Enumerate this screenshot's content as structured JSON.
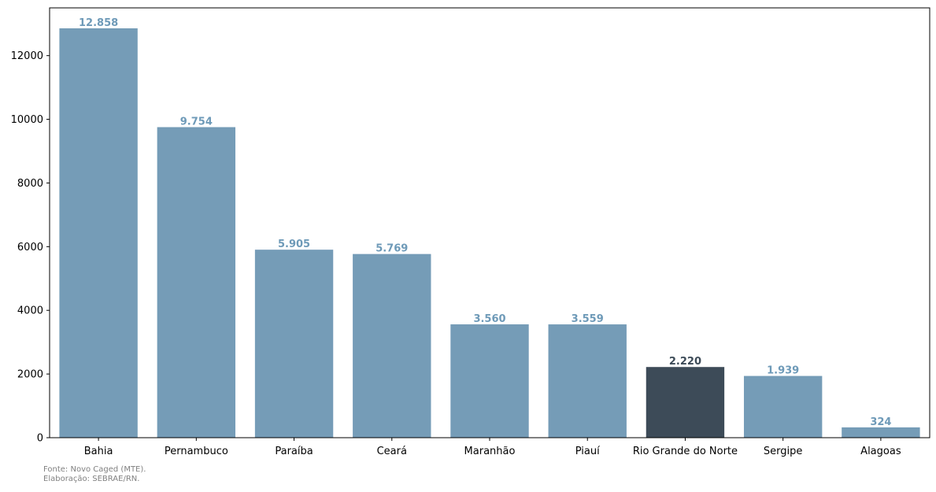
{
  "chart_data": {
    "type": "bar",
    "categories": [
      "Bahia",
      "Pernambuco",
      "Paraíba",
      "Ceará",
      "Maranhão",
      "Piauí",
      "Rio Grande do Norte",
      "Sergipe",
      "Alagoas"
    ],
    "values": [
      12858,
      9754,
      5905,
      5769,
      3560,
      3559,
      2220,
      1939,
      324
    ],
    "data_labels": [
      "12.858",
      "9.754",
      "5.905",
      "5.769",
      "3.560",
      "3.559",
      "2.220",
      "1.939",
      "324"
    ],
    "highlight_category": "Rio Grande do Norte",
    "title": "",
    "xlabel": "",
    "ylabel": "",
    "ylim": [
      0,
      13500
    ],
    "yticks": [
      0,
      2000,
      4000,
      6000,
      8000,
      10000,
      12000
    ],
    "grid": false,
    "colors": {
      "bar": "#759cb7",
      "bar_highlight": "#3d4b58",
      "label": "#6e9ab8",
      "label_highlight": "#3d4b58"
    }
  },
  "footnote": {
    "source": "Fonte: Novo Caged (MTE).",
    "credit": "Elaboração: SEBRAE/RN."
  }
}
